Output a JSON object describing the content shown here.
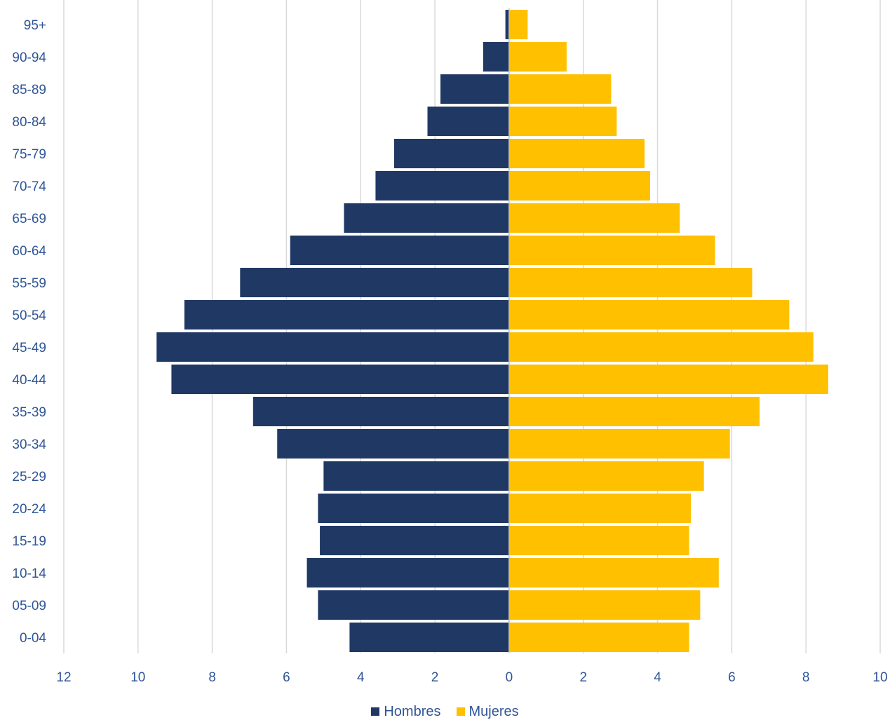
{
  "colors": {
    "hombres": "#203864",
    "mujeres": "#FFC000",
    "label_text": "#2F5597",
    "gridline": "#D9D9D9",
    "axis_line": "#BFBFBF",
    "background": "#FFFFFF"
  },
  "legend": {
    "hombres_label": "Hombres",
    "mujeres_label": "Mujeres",
    "placement": "bottom"
  },
  "chart_data": {
    "type": "bar",
    "orientation": "horizontal",
    "subtype": "population-pyramid",
    "categories": [
      "0-04",
      "05-09",
      "10-14",
      "15-19",
      "20-24",
      "25-29",
      "30-34",
      "35-39",
      "40-44",
      "45-49",
      "50-54",
      "55-59",
      "60-64",
      "65-69",
      "70-74",
      "75-79",
      "80-84",
      "85-89",
      "90-94",
      "95+"
    ],
    "series": [
      {
        "name": "Hombres",
        "side": "left",
        "values": [
          4.3,
          5.15,
          5.45,
          5.1,
          5.15,
          5.0,
          6.25,
          6.9,
          9.1,
          9.5,
          8.75,
          7.25,
          5.9,
          4.45,
          3.6,
          3.1,
          2.2,
          1.85,
          0.7,
          0.1
        ]
      },
      {
        "name": "Mujeres",
        "side": "right",
        "values": [
          4.85,
          5.15,
          5.65,
          4.85,
          4.9,
          5.25,
          5.95,
          6.75,
          8.6,
          8.2,
          7.55,
          6.55,
          5.55,
          4.6,
          3.8,
          3.65,
          2.9,
          2.75,
          1.55,
          0.5
        ]
      }
    ],
    "xlim": [
      -12,
      10
    ],
    "x_ticks": [
      -12,
      -10,
      -8,
      -6,
      -4,
      -2,
      0,
      2,
      4,
      6,
      8,
      10
    ],
    "x_tick_labels": [
      "12",
      "10",
      "8",
      "6",
      "4",
      "2",
      "0",
      "2",
      "4",
      "6",
      "8",
      "10"
    ],
    "title": "",
    "xlabel": "",
    "ylabel": "",
    "grid": "vertical"
  }
}
